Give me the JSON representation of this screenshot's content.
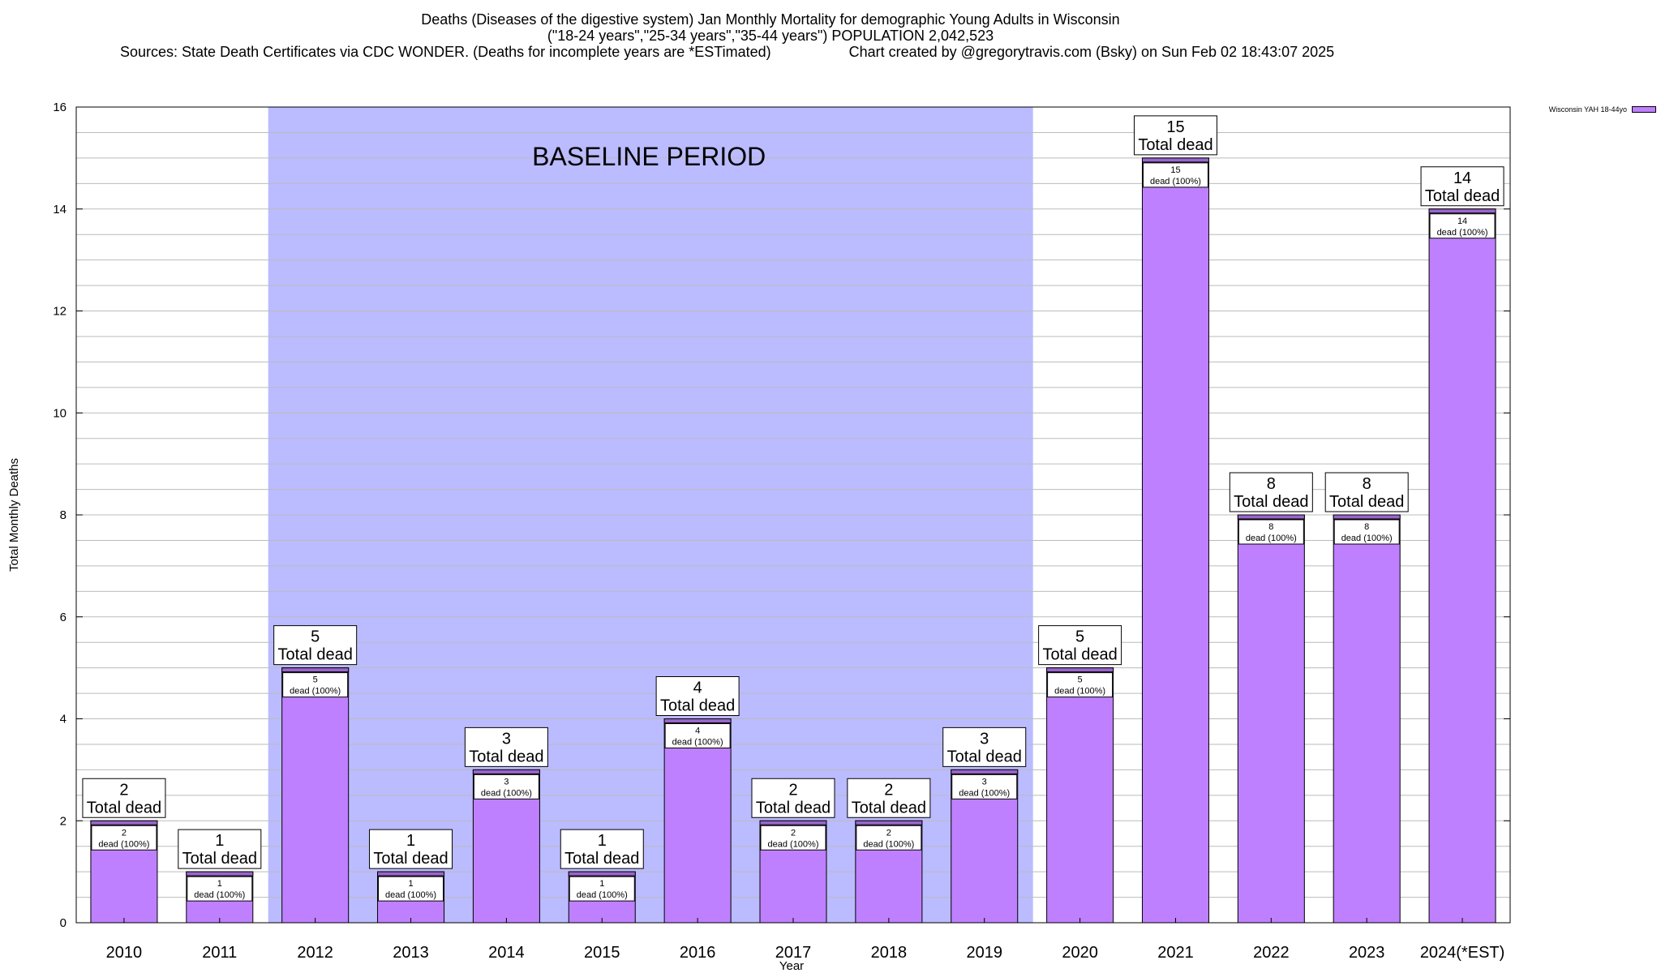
{
  "header": {
    "title_line1": "Deaths (Diseases of the digestive system) Jan Monthly Mortality for demographic Young Adults in Wisconsin",
    "title_line2": "(\"18-24 years\",\"25-34 years\",\"35-44 years\") POPULATION 2,042,523",
    "sources": "Sources: State Death Certificates via CDC WONDER. (Deaths for incomplete years are *ESTimated)",
    "credit": "Chart created by @gregorytravis.com (Bsky) on Sun Feb 02 18:43:07 2025"
  },
  "chart_data": {
    "type": "bar",
    "xlabel": "Year",
    "ylabel": "Total Monthly Deaths",
    "ylim": [
      0,
      16
    ],
    "y_ticks": [
      0,
      2,
      4,
      6,
      8,
      10,
      12,
      14,
      16
    ],
    "grid": true,
    "legend_position": "top-right",
    "categories": [
      "2010",
      "2011",
      "2012",
      "2013",
      "2014",
      "2015",
      "2016",
      "2017",
      "2018",
      "2019",
      "2020",
      "2021",
      "2022",
      "2023",
      "2024(*EST)"
    ],
    "series": [
      {
        "name": "Wisconsin YAH 18-44yo",
        "values": [
          2,
          1,
          5,
          1,
          3,
          1,
          4,
          2,
          2,
          3,
          5,
          15,
          8,
          8,
          14
        ]
      }
    ],
    "total_label": "Total dead",
    "inner_label_suffix": "dead (100%)",
    "baseline": {
      "label": "BASELINE PERIOD",
      "from": "2012",
      "to": "2019"
    },
    "colors": {
      "bar": "#bf80ff",
      "bar_top": "#9966cc",
      "baseline": "#bbbbff",
      "grid": "#bbbbbb"
    }
  }
}
